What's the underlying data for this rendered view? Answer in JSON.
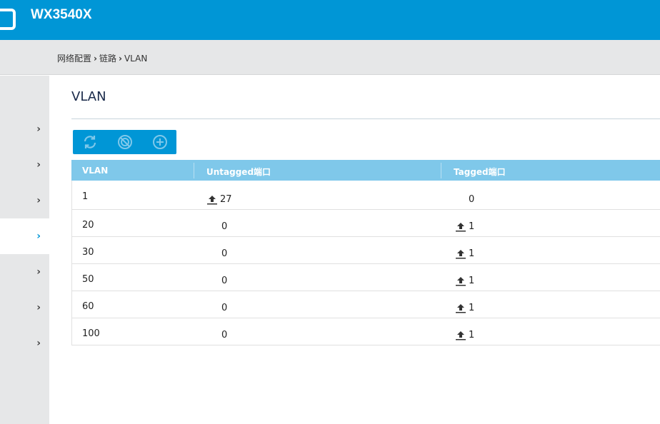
{
  "header": {
    "title": "WX3540X",
    "logo_icon": "bracket-logo"
  },
  "breadcrumb": [
    "网络配置",
    "链路",
    "VLAN"
  ],
  "sidebar": {
    "items": [
      {
        "icon": "chevron-right-icon",
        "active": false
      },
      {
        "icon": "chevron-right-icon",
        "active": false
      },
      {
        "icon": "chevron-right-icon",
        "active": false
      },
      {
        "icon": "chevron-right-icon",
        "active": true
      },
      {
        "icon": "chevron-right-icon",
        "active": false
      },
      {
        "icon": "chevron-right-icon",
        "active": false
      },
      {
        "icon": "chevron-right-icon",
        "active": false
      }
    ]
  },
  "page": {
    "title": "VLAN"
  },
  "toolbar": {
    "icons": [
      "refresh-icon",
      "disable-icon",
      "add-icon"
    ]
  },
  "table": {
    "headers": [
      "VLAN",
      "Untagged端口",
      "Tagged端口"
    ],
    "rows": [
      {
        "vlan": "1",
        "untagged": "27",
        "untagged_icon": true,
        "tagged": "0",
        "tagged_icon": false
      },
      {
        "vlan": "20",
        "untagged": "0",
        "untagged_icon": false,
        "tagged": "1",
        "tagged_icon": true
      },
      {
        "vlan": "30",
        "untagged": "0",
        "untagged_icon": false,
        "tagged": "1",
        "tagged_icon": true
      },
      {
        "vlan": "50",
        "untagged": "0",
        "untagged_icon": false,
        "tagged": "1",
        "tagged_icon": true
      },
      {
        "vlan": "60",
        "untagged": "0",
        "untagged_icon": false,
        "tagged": "1",
        "tagged_icon": true
      },
      {
        "vlan": "100",
        "untagged": "0",
        "untagged_icon": false,
        "tagged": "1",
        "tagged_icon": true
      }
    ]
  },
  "colors": {
    "brand": "#0096d6",
    "table_header": "#7fc8ea",
    "chrome": "#e6e7e8"
  }
}
